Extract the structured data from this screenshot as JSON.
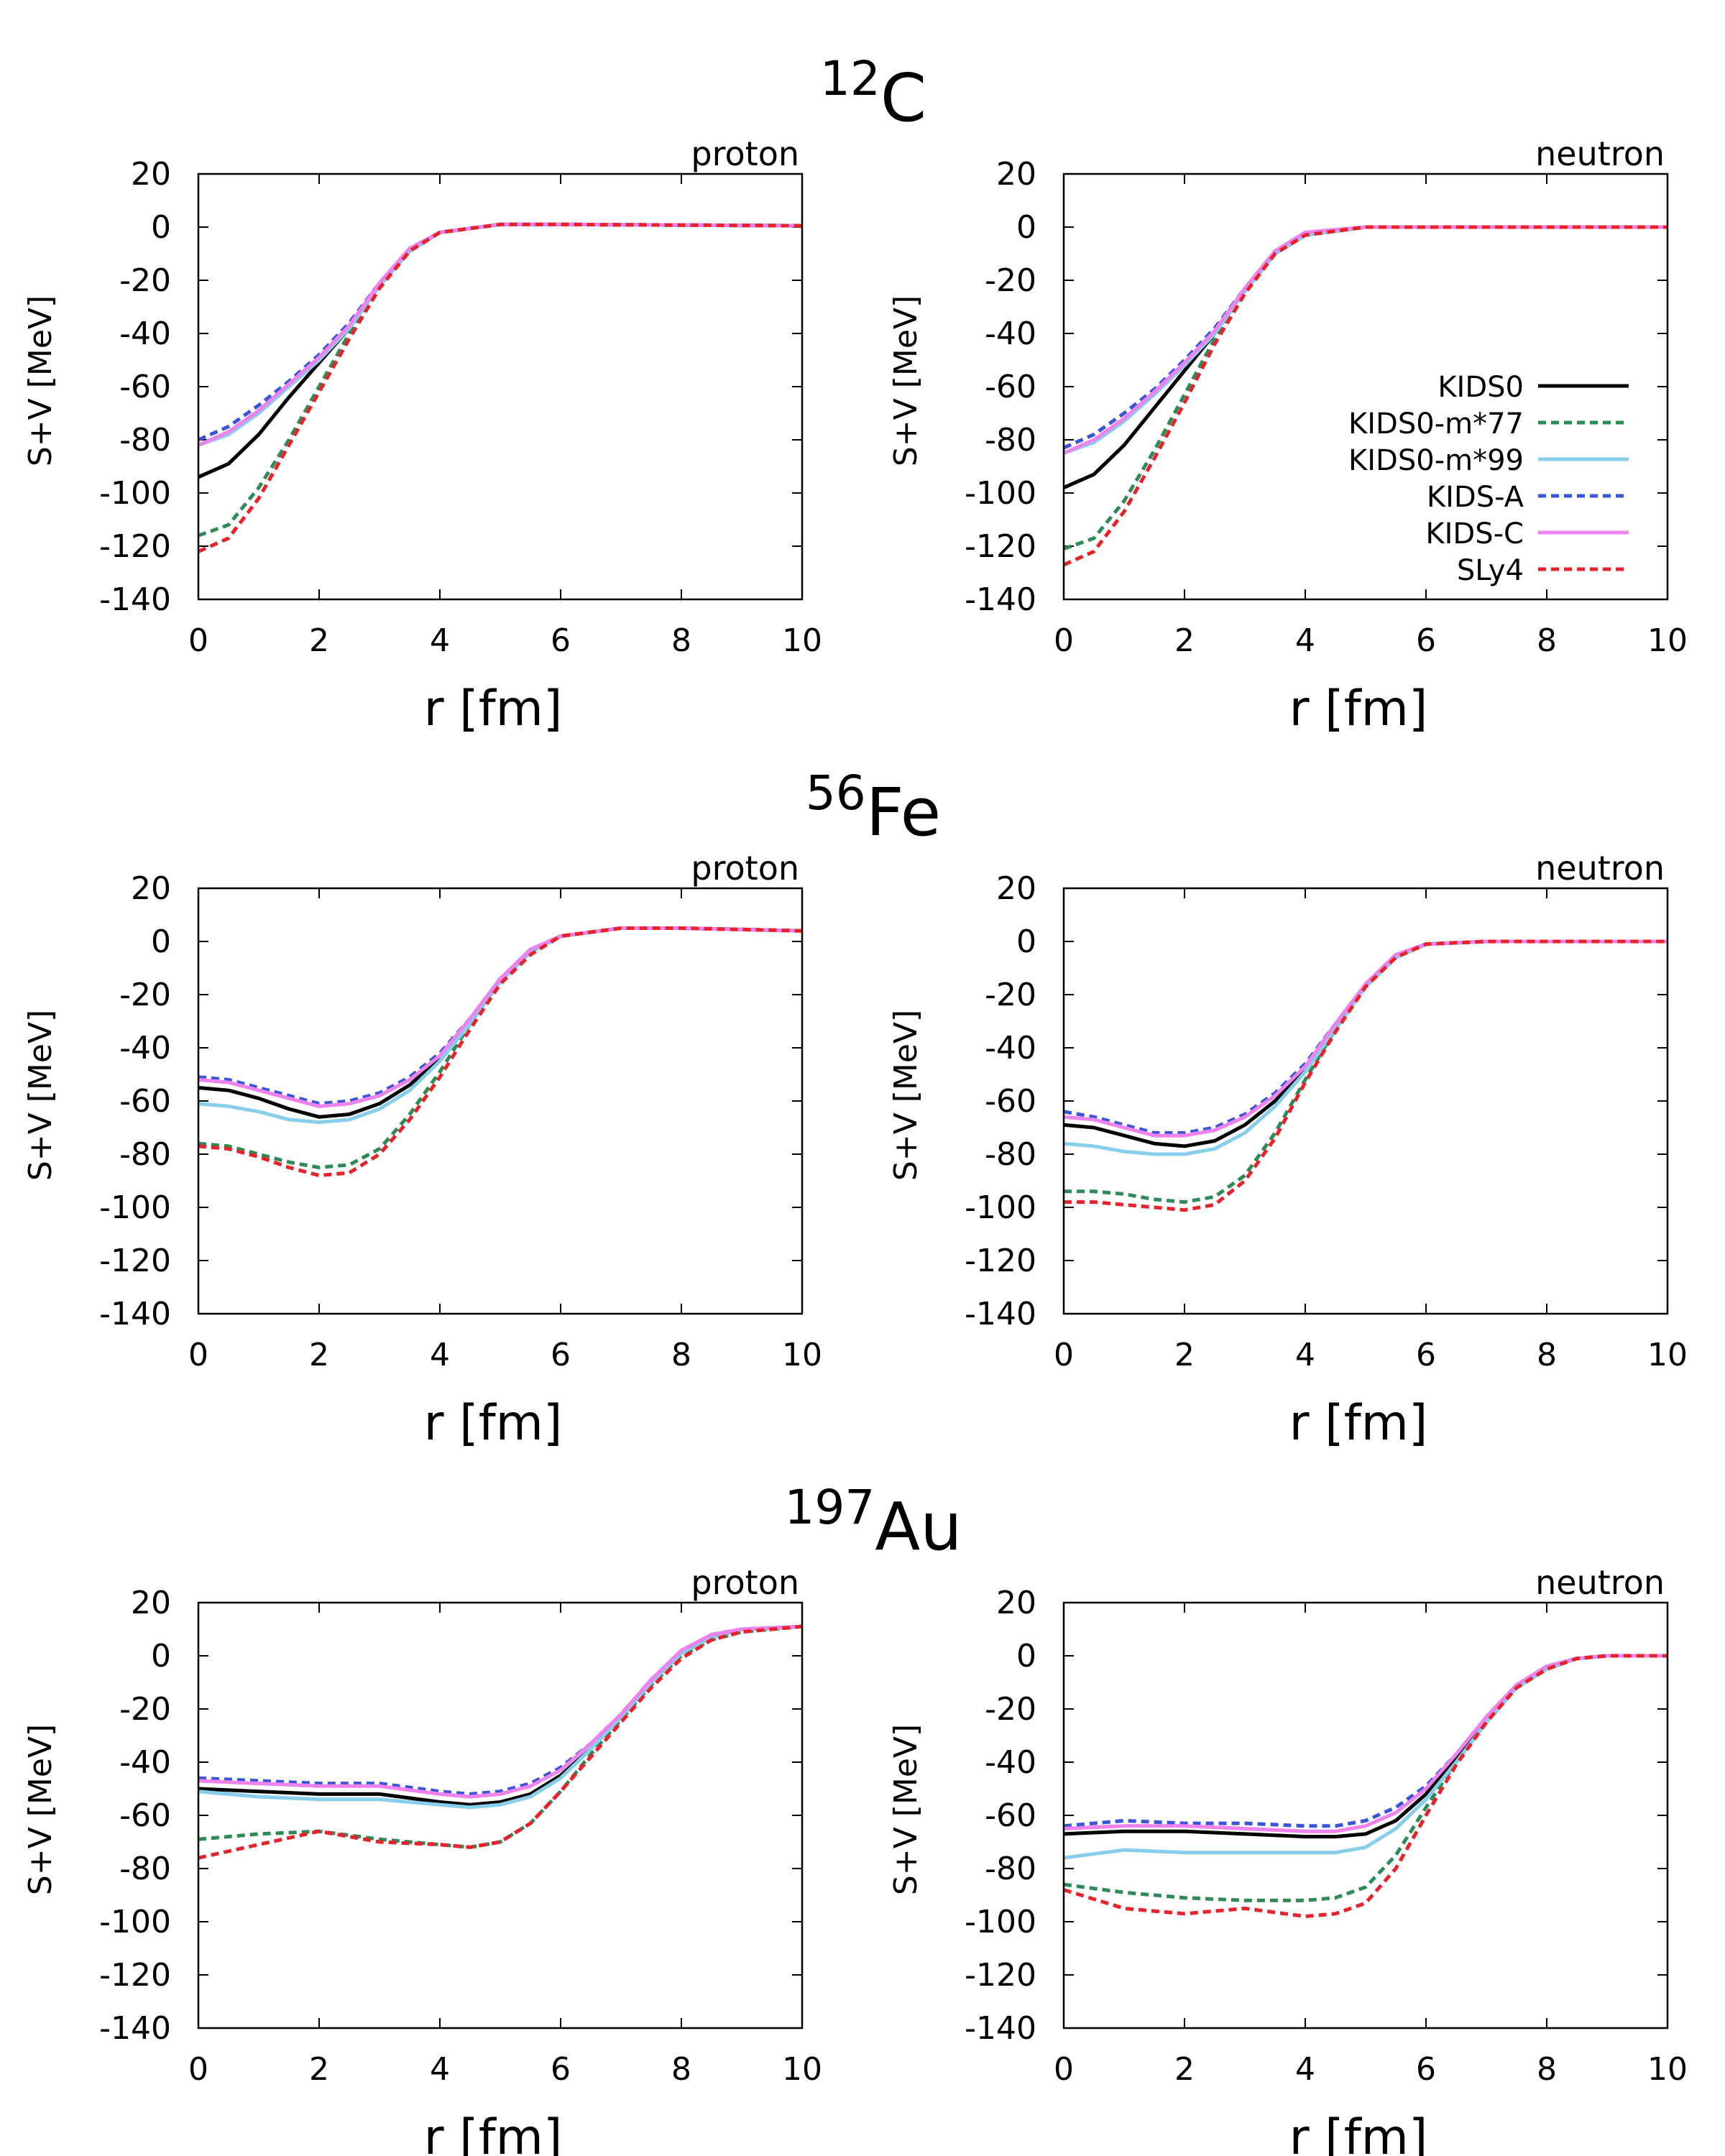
{
  "figure": {
    "nuclei": [
      {
        "mass": "12",
        "symbol": "C"
      },
      {
        "mass": "56",
        "symbol": "Fe"
      },
      {
        "mass": "197",
        "symbol": "Au"
      }
    ],
    "ylabel": "S+V [MeV]",
    "xlabel": "r [fm]",
    "xticks": [
      "0",
      "2",
      "4",
      "6",
      "8",
      "10"
    ],
    "yticks": [
      "20",
      "0",
      "-20",
      "-40",
      "-60",
      "-80",
      "-100",
      "-120",
      "-140"
    ],
    "legend": [
      {
        "name": "KIDS0",
        "color": "#000000",
        "dash": "solid"
      },
      {
        "name": "KIDS0-m*77",
        "color": "#2e8b57",
        "dash": "dashed"
      },
      {
        "name": "KIDS0-m*99",
        "color": "#87ceeb",
        "dash": "solid"
      },
      {
        "name": "KIDS-A",
        "color": "#3a55d9",
        "dash": "dashed"
      },
      {
        "name": "KIDS-C",
        "color": "#ee82ee",
        "dash": "solid"
      },
      {
        "name": "SLy4",
        "color": "#e8222a",
        "dash": "dashed"
      }
    ]
  },
  "chart_data": [
    {
      "type": "line",
      "nucleus": "12C",
      "particle": "proton",
      "title": "proton",
      "xlabel": "r [fm]",
      "ylabel": "S+V [MeV]",
      "xlim": [
        0,
        10
      ],
      "ylim": [
        -140,
        20
      ],
      "x": [
        0,
        0.5,
        1,
        1.5,
        2,
        2.5,
        3,
        3.5,
        4,
        5,
        6,
        10
      ],
      "series": [
        {
          "name": "KIDS0",
          "values": [
            -94,
            -89,
            -78,
            -64,
            -51,
            -38,
            -22,
            -9,
            -2,
            1,
            1,
            0.5
          ]
        },
        {
          "name": "KIDS0-m*77",
          "values": [
            -116,
            -112,
            -98,
            -80,
            -60,
            -40,
            -22,
            -9,
            -2,
            1,
            1,
            0.5
          ]
        },
        {
          "name": "KIDS0-m*99",
          "values": [
            -82,
            -78,
            -70,
            -60,
            -50,
            -38,
            -22,
            -9,
            -2,
            1,
            1,
            0.5
          ]
        },
        {
          "name": "KIDS-A",
          "values": [
            -80,
            -75,
            -67,
            -58,
            -48,
            -36,
            -21,
            -8,
            -2,
            1,
            1,
            0.5
          ]
        },
        {
          "name": "KIDS-C",
          "values": [
            -82,
            -77,
            -69,
            -59,
            -49,
            -37,
            -21,
            -8,
            -2,
            1,
            1,
            0.5
          ]
        },
        {
          "name": "SLy4",
          "values": [
            -122,
            -117,
            -102,
            -82,
            -62,
            -42,
            -23,
            -9,
            -2,
            1,
            1,
            0.5
          ]
        }
      ]
    },
    {
      "type": "line",
      "nucleus": "12C",
      "particle": "neutron",
      "title": "neutron",
      "xlabel": "r [fm]",
      "ylabel": "S+V [MeV]",
      "xlim": [
        0,
        10
      ],
      "ylim": [
        -140,
        20
      ],
      "x": [
        0,
        0.5,
        1,
        1.5,
        2,
        2.5,
        3,
        3.5,
        4,
        5,
        6,
        10
      ],
      "series": [
        {
          "name": "KIDS0",
          "values": [
            -98,
            -93,
            -82,
            -68,
            -54,
            -40,
            -24,
            -10,
            -3,
            0,
            0,
            0
          ]
        },
        {
          "name": "KIDS0-m*77",
          "values": [
            -121,
            -117,
            -103,
            -84,
            -63,
            -42,
            -24,
            -10,
            -3,
            0,
            0,
            0
          ]
        },
        {
          "name": "KIDS0-m*99",
          "values": [
            -85,
            -81,
            -73,
            -63,
            -52,
            -40,
            -24,
            -10,
            -3,
            0,
            0,
            0
          ]
        },
        {
          "name": "KIDS-A",
          "values": [
            -83,
            -78,
            -70,
            -61,
            -50,
            -38,
            -23,
            -9,
            -2,
            0,
            0,
            0
          ]
        },
        {
          "name": "KIDS-C",
          "values": [
            -85,
            -80,
            -72,
            -62,
            -51,
            -39,
            -23,
            -9,
            -2,
            0,
            0,
            0
          ]
        },
        {
          "name": "SLy4",
          "values": [
            -127,
            -122,
            -107,
            -87,
            -66,
            -44,
            -25,
            -10,
            -3,
            0,
            0,
            0
          ]
        }
      ]
    },
    {
      "type": "line",
      "nucleus": "56Fe",
      "particle": "proton",
      "title": "proton",
      "xlabel": "r [fm]",
      "ylabel": "S+V [MeV]",
      "xlim": [
        0,
        10
      ],
      "ylim": [
        -140,
        20
      ],
      "x": [
        0,
        0.5,
        1,
        1.5,
        2,
        2.5,
        3,
        3.5,
        4,
        4.5,
        5,
        5.5,
        6,
        7,
        8,
        10
      ],
      "series": [
        {
          "name": "KIDS0",
          "values": [
            -55,
            -56,
            -59,
            -63,
            -66,
            -65,
            -61,
            -54,
            -44,
            -30,
            -15,
            -4,
            2,
            5,
            5,
            4
          ]
        },
        {
          "name": "KIDS0-m*77",
          "values": [
            -76,
            -77,
            -80,
            -83,
            -85,
            -84,
            -78,
            -65,
            -49,
            -31,
            -15,
            -4,
            2,
            5,
            5,
            4
          ]
        },
        {
          "name": "KIDS0-m*99",
          "values": [
            -61,
            -62,
            -64,
            -67,
            -68,
            -67,
            -63,
            -56,
            -45,
            -31,
            -15,
            -4,
            2,
            5,
            5,
            4
          ]
        },
        {
          "name": "KIDS-A",
          "values": [
            -51,
            -52,
            -55,
            -58,
            -61,
            -60,
            -57,
            -51,
            -42,
            -29,
            -14,
            -3,
            2,
            5,
            5,
            4
          ]
        },
        {
          "name": "KIDS-C",
          "values": [
            -52,
            -53,
            -56,
            -59,
            -62,
            -61,
            -58,
            -52,
            -43,
            -29,
            -14,
            -3,
            2,
            5,
            5,
            4
          ]
        },
        {
          "name": "SLy4",
          "values": [
            -77,
            -78,
            -81,
            -85,
            -88,
            -87,
            -80,
            -67,
            -51,
            -33,
            -16,
            -5,
            2,
            5,
            5,
            4
          ]
        }
      ]
    },
    {
      "type": "line",
      "nucleus": "56Fe",
      "particle": "neutron",
      "title": "neutron",
      "xlabel": "r [fm]",
      "ylabel": "S+V [MeV]",
      "xlim": [
        0,
        10
      ],
      "ylim": [
        -140,
        20
      ],
      "x": [
        0,
        0.5,
        1,
        1.5,
        2,
        2.5,
        3,
        3.5,
        4,
        4.5,
        5,
        5.5,
        6,
        7,
        8,
        10
      ],
      "series": [
        {
          "name": "KIDS0",
          "values": [
            -69,
            -70,
            -73,
            -76,
            -77,
            -75,
            -69,
            -60,
            -48,
            -32,
            -17,
            -6,
            -1,
            0,
            0,
            0
          ]
        },
        {
          "name": "KIDS0-m*77",
          "values": [
            -94,
            -94,
            -95,
            -97,
            -98,
            -96,
            -88,
            -72,
            -52,
            -33,
            -17,
            -6,
            -1,
            0,
            0,
            0
          ]
        },
        {
          "name": "KIDS0-m*99",
          "values": [
            -76,
            -77,
            -79,
            -80,
            -80,
            -78,
            -72,
            -62,
            -49,
            -33,
            -17,
            -6,
            -1,
            0,
            0,
            0
          ]
        },
        {
          "name": "KIDS-A",
          "values": [
            -64,
            -66,
            -69,
            -72,
            -72,
            -70,
            -65,
            -57,
            -46,
            -31,
            -16,
            -5,
            -1,
            0,
            0,
            0
          ]
        },
        {
          "name": "KIDS-C",
          "values": [
            -66,
            -67,
            -70,
            -73,
            -73,
            -71,
            -66,
            -58,
            -47,
            -31,
            -16,
            -5,
            -1,
            0,
            0,
            0
          ]
        },
        {
          "name": "SLy4",
          "values": [
            -98,
            -98,
            -99,
            -100,
            -101,
            -99,
            -90,
            -74,
            -53,
            -34,
            -17,
            -6,
            -1,
            0,
            0,
            0
          ]
        }
      ]
    },
    {
      "type": "line",
      "nucleus": "197Au",
      "particle": "proton",
      "title": "proton",
      "xlabel": "r [fm]",
      "ylabel": "S+V [MeV]",
      "xlim": [
        0,
        10
      ],
      "ylim": [
        -140,
        20
      ],
      "x": [
        0,
        1,
        2,
        3,
        4,
        4.5,
        5,
        5.5,
        6,
        6.5,
        7,
        7.5,
        8,
        8.5,
        9,
        10
      ],
      "series": [
        {
          "name": "KIDS0",
          "values": [
            -50,
            -51,
            -52,
            -52,
            -55,
            -56,
            -55,
            -52,
            -45,
            -35,
            -23,
            -10,
            1,
            7,
            10,
            11
          ]
        },
        {
          "name": "KIDS0-m*77",
          "values": [
            -69,
            -67,
            -66,
            -69,
            -71,
            -72,
            -70,
            -63,
            -51,
            -37,
            -24,
            -11,
            0,
            6,
            9,
            11
          ]
        },
        {
          "name": "KIDS0-m*99",
          "values": [
            -51,
            -53,
            -54,
            -54,
            -56,
            -57,
            -56,
            -53,
            -46,
            -35,
            -23,
            -10,
            1,
            7,
            10,
            11
          ]
        },
        {
          "name": "KIDS-A",
          "values": [
            -46,
            -47,
            -48,
            -48,
            -51,
            -52,
            -51,
            -48,
            -42,
            -33,
            -22,
            -9,
            2,
            8,
            10,
            11
          ]
        },
        {
          "name": "KIDS-C",
          "values": [
            -47,
            -48,
            -49,
            -49,
            -52,
            -53,
            -52,
            -49,
            -43,
            -33,
            -22,
            -9,
            2,
            8,
            10,
            11
          ]
        },
        {
          "name": "SLy4",
          "values": [
            -76,
            -71,
            -66,
            -70,
            -71,
            -72,
            -70,
            -63,
            -51,
            -38,
            -25,
            -12,
            -1,
            6,
            9,
            11
          ]
        }
      ]
    },
    {
      "type": "line",
      "nucleus": "197Au",
      "particle": "neutron",
      "title": "neutron",
      "xlabel": "r [fm]",
      "ylabel": "S+V [MeV]",
      "xlim": [
        0,
        10
      ],
      "ylim": [
        -140,
        20
      ],
      "x": [
        0,
        1,
        2,
        3,
        4,
        4.5,
        5,
        5.5,
        6,
        6.5,
        7,
        7.5,
        8,
        8.5,
        9,
        10
      ],
      "series": [
        {
          "name": "KIDS0",
          "values": [
            -67,
            -66,
            -66,
            -67,
            -68,
            -68,
            -67,
            -62,
            -52,
            -38,
            -23,
            -11,
            -4,
            -1,
            0,
            0
          ]
        },
        {
          "name": "KIDS0-m*77",
          "values": [
            -86,
            -89,
            -91,
            -92,
            -92,
            -91,
            -87,
            -75,
            -57,
            -40,
            -25,
            -12,
            -5,
            -1,
            0,
            0
          ]
        },
        {
          "name": "KIDS0-m*99",
          "values": [
            -76,
            -73,
            -74,
            -74,
            -74,
            -74,
            -72,
            -65,
            -54,
            -40,
            -25,
            -12,
            -5,
            -1,
            0,
            0
          ]
        },
        {
          "name": "KIDS-A",
          "values": [
            -64,
            -62,
            -63,
            -63,
            -64,
            -64,
            -62,
            -57,
            -49,
            -37,
            -23,
            -12,
            -4,
            -1,
            0,
            0
          ]
        },
        {
          "name": "KIDS-C",
          "values": [
            -65,
            -64,
            -64,
            -65,
            -66,
            -66,
            -64,
            -59,
            -50,
            -37,
            -23,
            -11,
            -4,
            -1,
            0,
            0
          ]
        },
        {
          "name": "SLy4",
          "values": [
            -88,
            -95,
            -97,
            -95,
            -98,
            -97,
            -93,
            -80,
            -60,
            -41,
            -25,
            -12,
            -5,
            -1,
            0,
            0
          ]
        }
      ]
    }
  ]
}
